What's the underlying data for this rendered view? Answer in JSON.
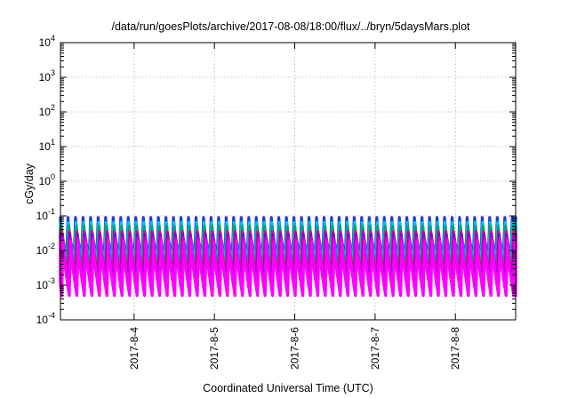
{
  "chart_data": {
    "type": "line",
    "title": "/data/run/goesPlots/archive/2017-08-08/18:00/flux/../bryn/5daysMars.plot",
    "xlabel": "Coordinated Universal Time (UTC)",
    "ylabel": "cGy/day",
    "yscale": "log",
    "ylim": [
      0.0001,
      10000
    ],
    "xlim": [
      "2017-08-03 02:00",
      "2017-08-08 18:00"
    ],
    "x_tick_labels": [
      "2017-8-4",
      "2017-8-5",
      "2017-8-6",
      "2017-8-7",
      "2017-8-8"
    ],
    "y_tick_labels": [
      {
        "base": "10",
        "exp": "-4"
      },
      {
        "base": "10",
        "exp": "-3"
      },
      {
        "base": "10",
        "exp": "-2"
      },
      {
        "base": "10",
        "exp": "-1"
      },
      {
        "base": "10",
        "exp": "0"
      },
      {
        "base": "10",
        "exp": "1"
      },
      {
        "base": "10",
        "exp": "2"
      },
      {
        "base": "10",
        "exp": "3"
      },
      {
        "base": "10",
        "exp": "4"
      }
    ],
    "grid": true,
    "pattern": {
      "description": "sawtooth oscillation roughly every 2.25 hours",
      "period_hours": 2.25
    },
    "series": [
      {
        "color": "#ff00ff",
        "peak": 0.018,
        "trough": 0.0005
      },
      {
        "color": "#d400d4",
        "peak": 0.022,
        "trough": 0.0007
      },
      {
        "color": "#9400d3",
        "peak": 0.03,
        "trough": 0.0012
      },
      {
        "color": "#e0194a",
        "peak": 0.035,
        "trough": 0.0015
      },
      {
        "color": "#00a080",
        "peak": 0.05,
        "trough": 0.0025
      },
      {
        "color": "#00bfff",
        "peak": 0.065,
        "trough": 0.004
      },
      {
        "color": "#1f3fd0",
        "peak": 0.09,
        "trough": 0.006
      }
    ]
  }
}
